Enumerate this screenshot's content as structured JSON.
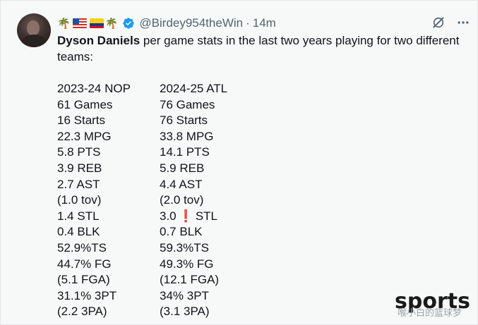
{
  "header": {
    "emoji_left": "🌴",
    "emoji_right": "🌴",
    "handle": "@Birdey954theWin",
    "separator": "·",
    "time": "14m"
  },
  "tweet": {
    "name_bold": "Dyson Daniels",
    "text_rest": " per game stats in the last two years playing for two different teams:"
  },
  "stats": [
    [
      "2023-24 NOP",
      "2024-25 ATL"
    ],
    [
      "61 Games",
      "76 Games"
    ],
    [
      "16 Starts",
      "76 Starts"
    ],
    [
      "22.3 MPG",
      "33.8 MPG"
    ],
    [
      "5.8 PTS",
      "14.1 PTS"
    ],
    [
      "3.9 REB",
      "5.9 REB"
    ],
    [
      "2.7 AST",
      "4.4 AST"
    ],
    [
      "(1.0 tov)",
      "(2.0 tov)"
    ],
    [
      "1.4 STL",
      "3.0"
    ],
    [
      "0.4 BLK",
      "0.7 BLK"
    ],
    [
      "52.9%TS",
      "59.3%TS"
    ],
    [
      "44.7% FG",
      "49.3% FG"
    ],
    [
      "(5.1 FGA)",
      "(12.1 FGA)"
    ],
    [
      "31.1% 3PT",
      "34% 3PT"
    ],
    [
      "(2.2 3PA)",
      "(3.1 3PA)"
    ]
  ],
  "stl_highlight": {
    "mark": "❗",
    "suffix": "STL"
  },
  "watermark": {
    "brand": "sports",
    "sub": "喉小白的篮球梦"
  },
  "colors": {
    "background": "#f7f9f9",
    "verified": "#1d9bf0",
    "secondary_text": "#536471",
    "exclamation": "#d4102b"
  }
}
